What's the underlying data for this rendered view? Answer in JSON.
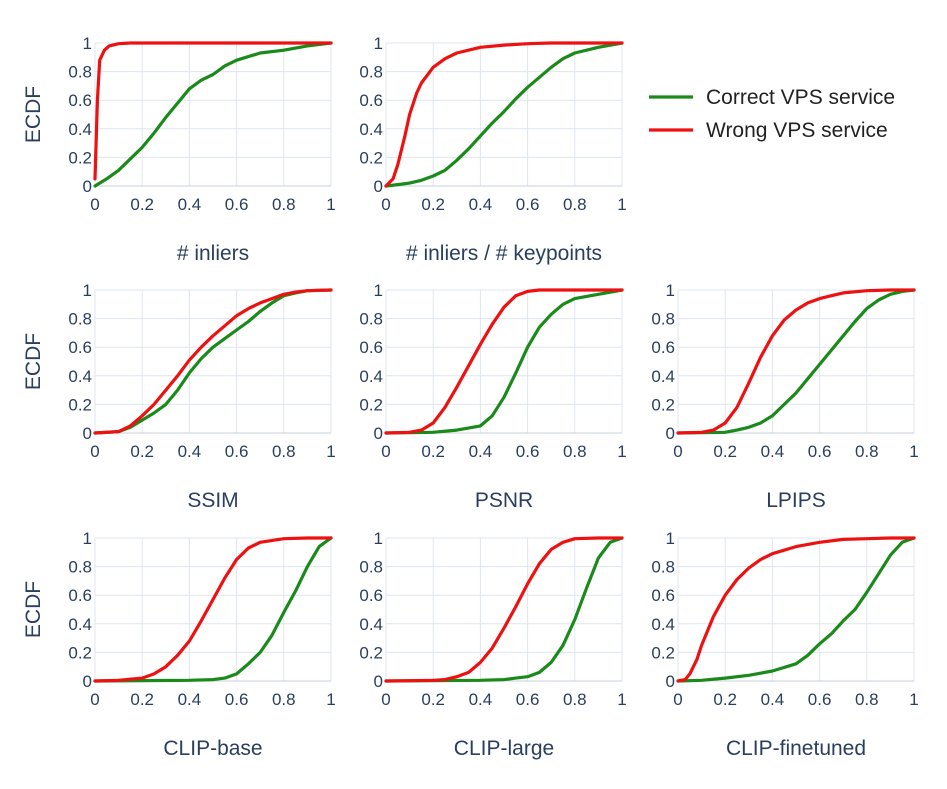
{
  "colors": {
    "correct": "#1a8a1a",
    "wrong": "#ee1111",
    "text": "#2a3f5f",
    "grid": "#dfe6ef"
  },
  "legend": {
    "entries": [
      {
        "name": "Correct VPS service",
        "color": "#1a8a1a"
      },
      {
        "name": "Wrong VPS service",
        "color": "#ee1111"
      }
    ],
    "placement": "top-right"
  },
  "chart_data": [
    {
      "type": "line",
      "title": "",
      "xlabel": "# inliers",
      "ylabel": "ECDF",
      "xlim": [
        0,
        1
      ],
      "ylim": [
        0,
        1
      ],
      "x_ticks": [
        "0",
        "0.2",
        "0.4",
        "0.6",
        "0.8",
        "1"
      ],
      "y_ticks": [
        "0",
        "0.2",
        "0.4",
        "0.6",
        "0.8",
        "1"
      ],
      "series": [
        {
          "name": "Correct VPS service",
          "x": [
            0,
            0.05,
            0.1,
            0.15,
            0.2,
            0.25,
            0.3,
            0.35,
            0.4,
            0.45,
            0.5,
            0.55,
            0.6,
            0.7,
            0.8,
            0.9,
            1
          ],
          "y": [
            0,
            0.05,
            0.11,
            0.19,
            0.27,
            0.37,
            0.48,
            0.58,
            0.68,
            0.74,
            0.78,
            0.84,
            0.88,
            0.93,
            0.95,
            0.98,
            1
          ]
        },
        {
          "name": "Wrong VPS service",
          "x": [
            0,
            0.01,
            0.02,
            0.04,
            0.06,
            0.1,
            0.15,
            1
          ],
          "y": [
            0.05,
            0.6,
            0.88,
            0.95,
            0.98,
            0.995,
            1,
            1
          ]
        }
      ]
    },
    {
      "type": "line",
      "title": "",
      "xlabel": "# inliers / # keypoints",
      "ylabel": "",
      "xlim": [
        0,
        1
      ],
      "ylim": [
        0,
        1
      ],
      "x_ticks": [
        "0",
        "0.2",
        "0.4",
        "0.6",
        "0.8",
        "1"
      ],
      "y_ticks": [
        "0",
        "0.2",
        "0.4",
        "0.6",
        "0.8",
        "1"
      ],
      "series": [
        {
          "name": "Correct VPS service",
          "x": [
            0,
            0.05,
            0.1,
            0.15,
            0.2,
            0.25,
            0.3,
            0.35,
            0.4,
            0.45,
            0.5,
            0.55,
            0.6,
            0.65,
            0.7,
            0.75,
            0.8,
            0.9,
            1
          ],
          "y": [
            0,
            0.01,
            0.02,
            0.04,
            0.07,
            0.11,
            0.18,
            0.26,
            0.35,
            0.44,
            0.52,
            0.61,
            0.69,
            0.76,
            0.83,
            0.89,
            0.93,
            0.97,
            1
          ]
        },
        {
          "name": "Wrong VPS service",
          "x": [
            0,
            0.03,
            0.05,
            0.08,
            0.1,
            0.13,
            0.15,
            0.2,
            0.25,
            0.3,
            0.4,
            0.5,
            0.6,
            0.7,
            1
          ],
          "y": [
            0,
            0.05,
            0.15,
            0.35,
            0.5,
            0.65,
            0.72,
            0.83,
            0.89,
            0.93,
            0.97,
            0.985,
            0.995,
            1,
            1
          ]
        }
      ]
    },
    {
      "type": "line",
      "title": "",
      "xlabel": "SSIM",
      "ylabel": "ECDF",
      "xlim": [
        0,
        1
      ],
      "ylim": [
        0,
        1
      ],
      "x_ticks": [
        "0",
        "0.2",
        "0.4",
        "0.6",
        "0.8",
        "1"
      ],
      "y_ticks": [
        "0",
        "0.2",
        "0.4",
        "0.6",
        "0.8",
        "1"
      ],
      "series": [
        {
          "name": "Correct VPS service",
          "x": [
            0,
            0.1,
            0.15,
            0.2,
            0.25,
            0.3,
            0.35,
            0.4,
            0.45,
            0.5,
            0.55,
            0.6,
            0.65,
            0.7,
            0.75,
            0.8,
            0.85,
            0.9,
            1
          ],
          "y": [
            0,
            0.01,
            0.04,
            0.09,
            0.14,
            0.2,
            0.3,
            0.42,
            0.52,
            0.6,
            0.66,
            0.72,
            0.78,
            0.85,
            0.91,
            0.96,
            0.98,
            0.995,
            1
          ]
        },
        {
          "name": "Wrong VPS service",
          "x": [
            0,
            0.1,
            0.15,
            0.2,
            0.25,
            0.3,
            0.35,
            0.4,
            0.45,
            0.5,
            0.55,
            0.6,
            0.65,
            0.7,
            0.75,
            0.8,
            0.85,
            0.9,
            1
          ],
          "y": [
            0,
            0.01,
            0.05,
            0.12,
            0.2,
            0.3,
            0.4,
            0.51,
            0.6,
            0.68,
            0.75,
            0.82,
            0.87,
            0.91,
            0.94,
            0.97,
            0.985,
            0.995,
            1
          ]
        }
      ]
    },
    {
      "type": "line",
      "title": "",
      "xlabel": "PSNR",
      "ylabel": "",
      "xlim": [
        0,
        1
      ],
      "ylim": [
        0,
        1
      ],
      "x_ticks": [
        "0",
        "0.2",
        "0.4",
        "0.6",
        "0.8",
        "1"
      ],
      "y_ticks": [
        "0",
        "0.2",
        "0.4",
        "0.6",
        "0.8",
        "1"
      ],
      "series": [
        {
          "name": "Correct VPS service",
          "x": [
            0,
            0.2,
            0.3,
            0.4,
            0.45,
            0.5,
            0.55,
            0.6,
            0.65,
            0.7,
            0.75,
            0.8,
            0.9,
            1
          ],
          "y": [
            0,
            0.005,
            0.02,
            0.05,
            0.12,
            0.25,
            0.42,
            0.6,
            0.74,
            0.83,
            0.9,
            0.94,
            0.97,
            1
          ]
        },
        {
          "name": "Wrong VPS service",
          "x": [
            0,
            0.1,
            0.15,
            0.2,
            0.25,
            0.3,
            0.35,
            0.4,
            0.45,
            0.5,
            0.55,
            0.6,
            0.65,
            0.7,
            1
          ],
          "y": [
            0,
            0.005,
            0.02,
            0.07,
            0.18,
            0.32,
            0.47,
            0.62,
            0.76,
            0.88,
            0.96,
            0.99,
            1,
            1,
            1
          ]
        }
      ]
    },
    {
      "type": "line",
      "title": "",
      "xlabel": "LPIPS",
      "ylabel": "",
      "xlim": [
        0,
        1
      ],
      "ylim": [
        0,
        1
      ],
      "x_ticks": [
        "0",
        "0.2",
        "0.4",
        "0.6",
        "0.8",
        "1"
      ],
      "y_ticks": [
        "0",
        "0.2",
        "0.4",
        "0.6",
        "0.8",
        "1"
      ],
      "series": [
        {
          "name": "Correct VPS service",
          "x": [
            0,
            0.2,
            0.25,
            0.3,
            0.35,
            0.4,
            0.45,
            0.5,
            0.55,
            0.6,
            0.65,
            0.7,
            0.75,
            0.8,
            0.85,
            0.9,
            0.95,
            1
          ],
          "y": [
            0,
            0.005,
            0.02,
            0.04,
            0.07,
            0.12,
            0.2,
            0.28,
            0.38,
            0.48,
            0.58,
            0.68,
            0.78,
            0.87,
            0.93,
            0.97,
            0.99,
            1
          ]
        },
        {
          "name": "Wrong VPS service",
          "x": [
            0,
            0.1,
            0.15,
            0.2,
            0.25,
            0.3,
            0.35,
            0.4,
            0.45,
            0.5,
            0.55,
            0.6,
            0.65,
            0.7,
            0.8,
            0.9,
            1
          ],
          "y": [
            0,
            0.005,
            0.02,
            0.07,
            0.18,
            0.35,
            0.53,
            0.68,
            0.79,
            0.86,
            0.91,
            0.94,
            0.96,
            0.98,
            0.995,
            1,
            1
          ]
        }
      ]
    },
    {
      "type": "line",
      "title": "",
      "xlabel": "CLIP-base",
      "ylabel": "ECDF",
      "xlim": [
        0,
        1
      ],
      "ylim": [
        0,
        1
      ],
      "x_ticks": [
        "0",
        "0.2",
        "0.4",
        "0.6",
        "0.8",
        "1"
      ],
      "y_ticks": [
        "0",
        "0.2",
        "0.4",
        "0.6",
        "0.8",
        "1"
      ],
      "series": [
        {
          "name": "Correct VPS service",
          "x": [
            0,
            0.4,
            0.5,
            0.55,
            0.6,
            0.65,
            0.7,
            0.75,
            0.8,
            0.85,
            0.9,
            0.95,
            1
          ],
          "y": [
            0,
            0.005,
            0.01,
            0.02,
            0.05,
            0.12,
            0.2,
            0.32,
            0.48,
            0.63,
            0.8,
            0.94,
            1
          ]
        },
        {
          "name": "Wrong VPS service",
          "x": [
            0,
            0.1,
            0.2,
            0.25,
            0.3,
            0.35,
            0.4,
            0.45,
            0.5,
            0.55,
            0.6,
            0.65,
            0.7,
            0.8,
            0.9,
            1
          ],
          "y": [
            0,
            0.005,
            0.02,
            0.05,
            0.1,
            0.18,
            0.28,
            0.42,
            0.57,
            0.72,
            0.85,
            0.93,
            0.97,
            0.995,
            1,
            1
          ]
        }
      ]
    },
    {
      "type": "line",
      "title": "",
      "xlabel": "CLIP-large",
      "ylabel": "",
      "xlim": [
        0,
        1
      ],
      "ylim": [
        0,
        1
      ],
      "x_ticks": [
        "0",
        "0.2",
        "0.4",
        "0.6",
        "0.8",
        "1"
      ],
      "y_ticks": [
        "0",
        "0.2",
        "0.4",
        "0.6",
        "0.8",
        "1"
      ],
      "series": [
        {
          "name": "Correct VPS service",
          "x": [
            0,
            0.4,
            0.5,
            0.55,
            0.6,
            0.65,
            0.7,
            0.75,
            0.8,
            0.85,
            0.9,
            0.95,
            1
          ],
          "y": [
            0,
            0.005,
            0.01,
            0.02,
            0.03,
            0.06,
            0.13,
            0.25,
            0.43,
            0.65,
            0.86,
            0.97,
            1
          ]
        },
        {
          "name": "Wrong VPS service",
          "x": [
            0,
            0.1,
            0.2,
            0.25,
            0.3,
            0.35,
            0.4,
            0.45,
            0.5,
            0.55,
            0.6,
            0.65,
            0.7,
            0.75,
            0.8,
            0.9,
            1
          ],
          "y": [
            0,
            0.002,
            0.005,
            0.01,
            0.03,
            0.06,
            0.13,
            0.23,
            0.37,
            0.52,
            0.68,
            0.82,
            0.92,
            0.97,
            0.995,
            1,
            1
          ]
        }
      ]
    },
    {
      "type": "line",
      "title": "",
      "xlabel": "CLIP-finetuned",
      "ylabel": "",
      "xlim": [
        0,
        1
      ],
      "ylim": [
        0,
        1
      ],
      "x_ticks": [
        "0",
        "0.2",
        "0.4",
        "0.6",
        "0.8",
        "1"
      ],
      "y_ticks": [
        "0",
        "0.2",
        "0.4",
        "0.6",
        "0.8",
        "1"
      ],
      "series": [
        {
          "name": "Correct VPS service",
          "x": [
            0,
            0.1,
            0.2,
            0.3,
            0.4,
            0.5,
            0.55,
            0.6,
            0.65,
            0.7,
            0.75,
            0.8,
            0.85,
            0.9,
            0.95,
            1
          ],
          "y": [
            0,
            0.005,
            0.02,
            0.04,
            0.07,
            0.12,
            0.18,
            0.26,
            0.33,
            0.42,
            0.5,
            0.62,
            0.75,
            0.88,
            0.97,
            1
          ]
        },
        {
          "name": "Wrong VPS service",
          "x": [
            0,
            0.03,
            0.05,
            0.08,
            0.1,
            0.15,
            0.2,
            0.25,
            0.3,
            0.35,
            0.4,
            0.5,
            0.6,
            0.7,
            0.8,
            0.9,
            1
          ],
          "y": [
            0,
            0.01,
            0.05,
            0.15,
            0.25,
            0.45,
            0.6,
            0.71,
            0.79,
            0.85,
            0.89,
            0.94,
            0.97,
            0.99,
            0.995,
            1,
            1
          ]
        }
      ]
    }
  ]
}
